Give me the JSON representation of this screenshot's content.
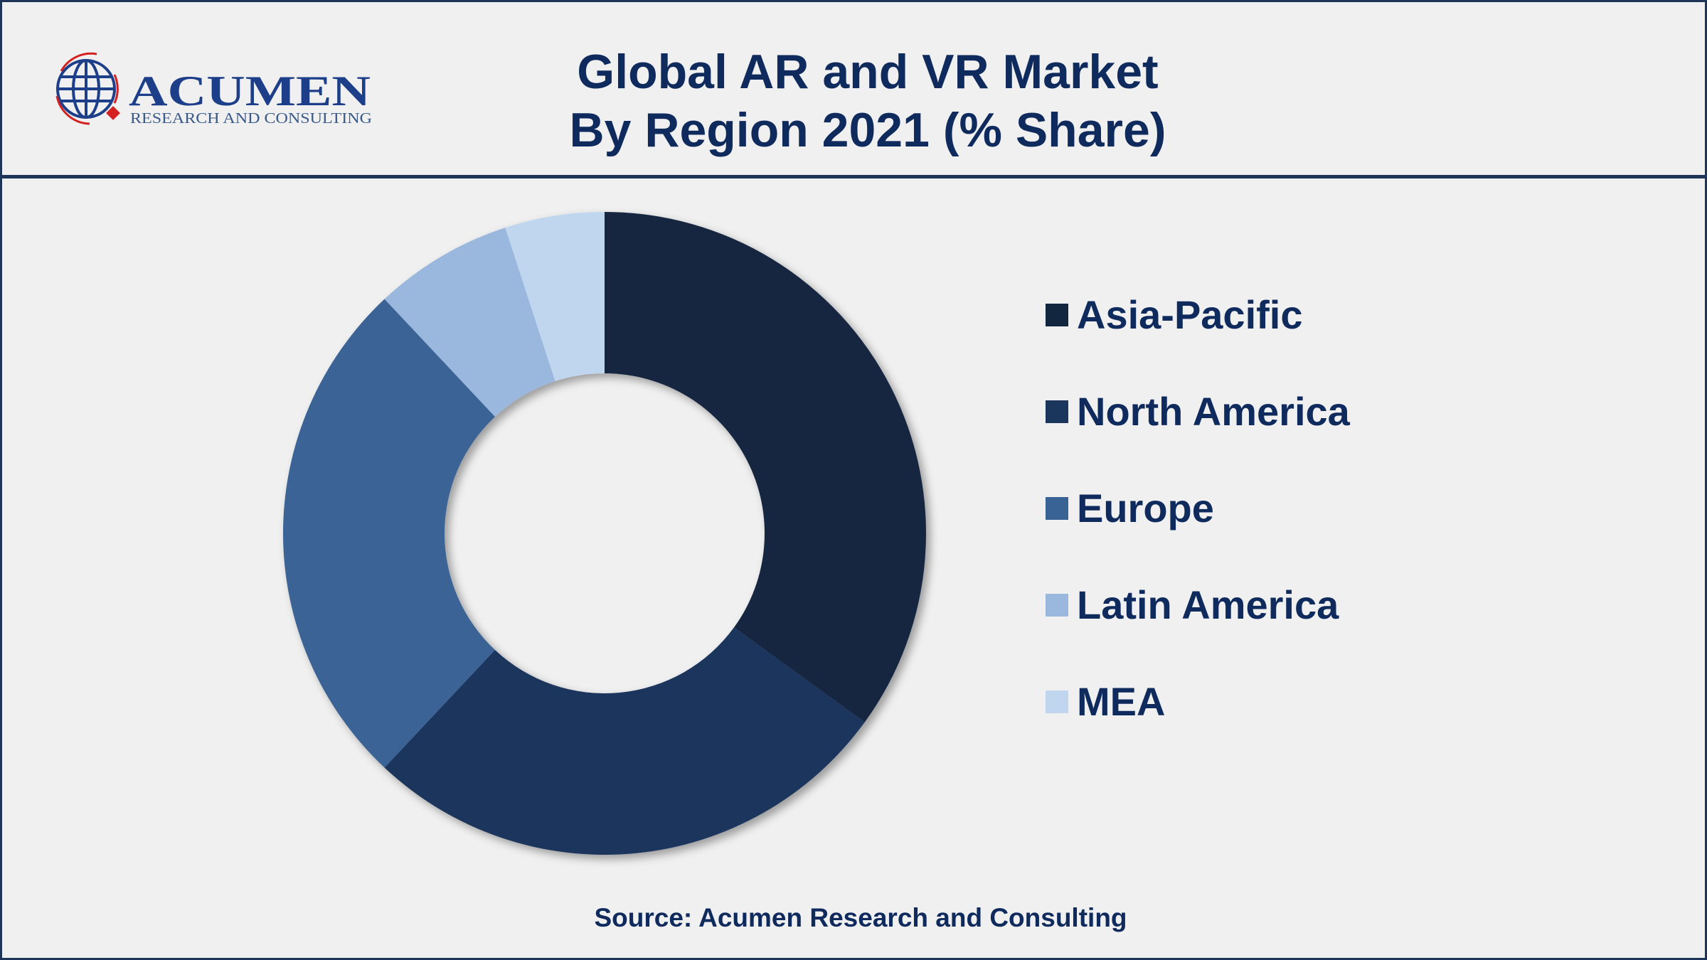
{
  "title_line1": "Global AR and VR Market",
  "title_line2": "By Region 2021 (% Share)",
  "logo": {
    "name": "ACUMEN",
    "tagline": "RESEARCH AND CONSULTING"
  },
  "source": "Source: Acumen Research and Consulting",
  "chart_data": {
    "type": "pie",
    "donut": true,
    "title": "Global AR and VR Market By Region 2021 (% Share)",
    "categories": [
      "Asia-Pacific",
      "North America",
      "Europe",
      "Latin America",
      "MEA"
    ],
    "values": [
      35,
      27,
      26,
      7,
      5
    ],
    "unit": "%",
    "colors": [
      "#13263f",
      "#1b365d",
      "#3a6395",
      "#9ab8de",
      "#c0d5ee"
    ],
    "legend_placement": "right",
    "start": "12 o'clock, clockwise"
  }
}
